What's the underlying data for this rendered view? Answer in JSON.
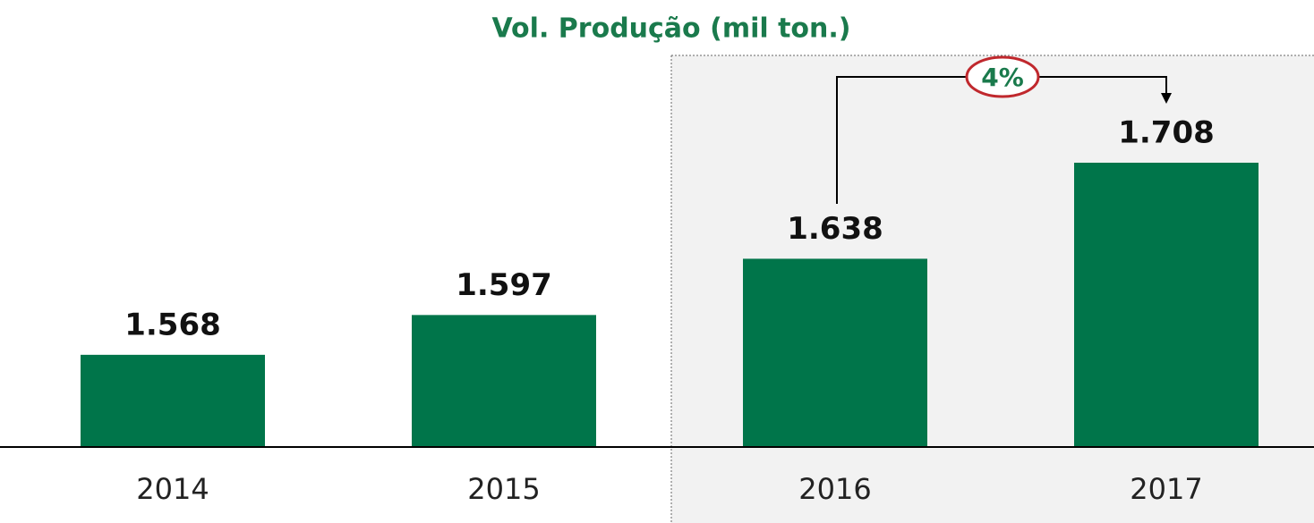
{
  "chart_data": {
    "type": "bar",
    "title": "Vol. Produção (mil ton.)",
    "categories": [
      "2014",
      "2015",
      "2016",
      "2017"
    ],
    "values": [
      1568,
      1597,
      1638,
      1708
    ],
    "value_labels": [
      "1.568",
      "1.597",
      "1.638",
      "1.708"
    ],
    "color": "#00754a",
    "annotation": "4%"
  }
}
